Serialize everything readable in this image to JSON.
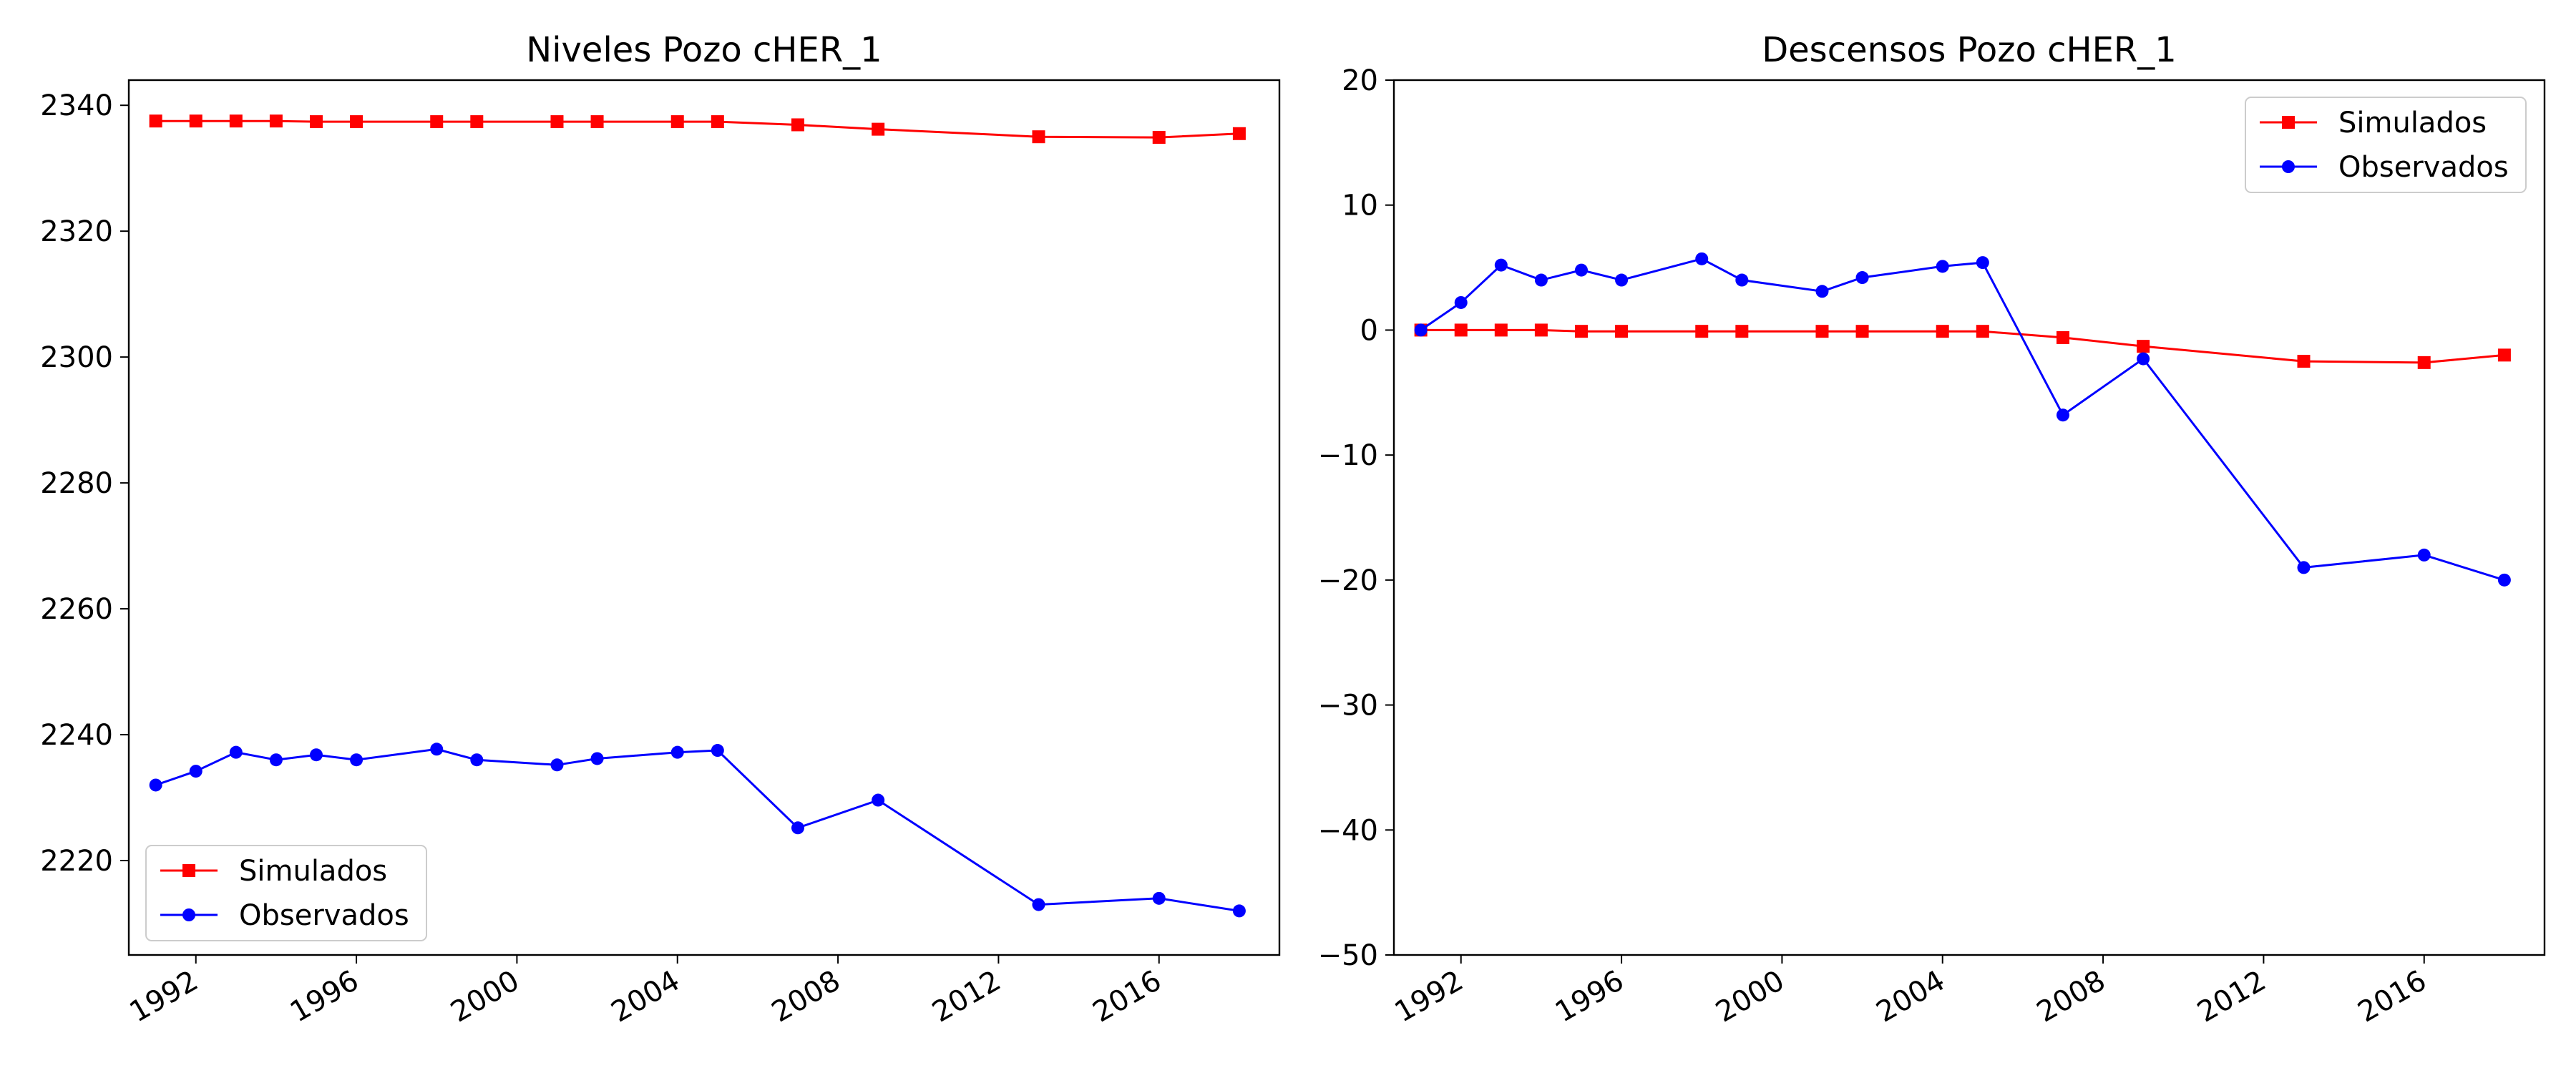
{
  "chart_data": [
    {
      "type": "line",
      "title": "Niveles Pozo cHER_1",
      "xlabel": "",
      "ylabel": "",
      "xlim": [
        "1990-05-01",
        "2019-01-01"
      ],
      "ylim": [
        2205,
        2344
      ],
      "x_ticks": [
        "1992",
        "1996",
        "2000",
        "2004",
        "2008",
        "2012",
        "2016"
      ],
      "y_ticks": [
        2220,
        2240,
        2260,
        2280,
        2300,
        2320,
        2340
      ],
      "legend_position": "lower-left",
      "grid": false,
      "series": [
        {
          "name": "Simulados",
          "color": "#ff0000",
          "marker": "square",
          "x": [
            "1991-01-01",
            "1992-01-01",
            "1993-01-01",
            "1994-01-01",
            "1995-01-01",
            "1996-01-01",
            "1998-01-01",
            "1999-01-01",
            "2001-01-01",
            "2002-01-01",
            "2004-01-01",
            "2005-01-01",
            "2007-01-01",
            "2009-01-01",
            "2013-01-01",
            "2016-01-01",
            "2018-01-01"
          ],
          "values": [
            2337.5,
            2337.5,
            2337.5,
            2337.5,
            2337.4,
            2337.4,
            2337.4,
            2337.4,
            2337.4,
            2337.4,
            2337.4,
            2337.4,
            2336.9,
            2336.2,
            2335.0,
            2334.9,
            2335.5
          ]
        },
        {
          "name": "Observados",
          "color": "#0000ff",
          "marker": "circle",
          "x": [
            "1991-01-01",
            "1992-01-01",
            "1993-01-01",
            "1994-01-01",
            "1995-01-01",
            "1996-01-01",
            "1998-01-01",
            "1999-01-01",
            "2001-01-01",
            "2002-01-01",
            "2004-01-01",
            "2005-01-01",
            "2007-01-01",
            "2009-01-01",
            "2013-01-01",
            "2016-01-01",
            "2018-01-01"
          ],
          "values": [
            2232.0,
            2234.2,
            2237.2,
            2236.0,
            2236.8,
            2236.0,
            2237.7,
            2236.0,
            2235.2,
            2236.2,
            2237.2,
            2237.5,
            2225.2,
            2229.6,
            2213.0,
            2214.0,
            2212.0
          ]
        }
      ]
    },
    {
      "type": "line",
      "title": "Descensos Pozo cHER_1",
      "xlabel": "",
      "ylabel": "",
      "xlim": [
        "1990-05-01",
        "2019-01-01"
      ],
      "ylim": [
        -50,
        20
      ],
      "x_ticks": [
        "1992",
        "1996",
        "2000",
        "2004",
        "2008",
        "2012",
        "2016"
      ],
      "y_ticks": [
        -50,
        -40,
        -30,
        -20,
        -10,
        0,
        10,
        20
      ],
      "legend_position": "upper-right",
      "grid": false,
      "series": [
        {
          "name": "Simulados",
          "color": "#ff0000",
          "marker": "square",
          "x": [
            "1991-01-01",
            "1992-01-01",
            "1993-01-01",
            "1994-01-01",
            "1995-01-01",
            "1996-01-01",
            "1998-01-01",
            "1999-01-01",
            "2001-01-01",
            "2002-01-01",
            "2004-01-01",
            "2005-01-01",
            "2007-01-01",
            "2009-01-01",
            "2013-01-01",
            "2016-01-01",
            "2018-01-01"
          ],
          "values": [
            0.0,
            0.0,
            0.0,
            0.0,
            -0.1,
            -0.1,
            -0.1,
            -0.1,
            -0.1,
            -0.1,
            -0.1,
            -0.1,
            -0.6,
            -1.3,
            -2.5,
            -2.6,
            -2.0
          ]
        },
        {
          "name": "Observados",
          "color": "#0000ff",
          "marker": "circle",
          "x": [
            "1991-01-01",
            "1992-01-01",
            "1993-01-01",
            "1994-01-01",
            "1995-01-01",
            "1996-01-01",
            "1998-01-01",
            "1999-01-01",
            "2001-01-01",
            "2002-01-01",
            "2004-01-01",
            "2005-01-01",
            "2007-01-01",
            "2009-01-01",
            "2013-01-01",
            "2016-01-01",
            "2018-01-01"
          ],
          "values": [
            0.0,
            2.2,
            5.2,
            4.0,
            4.8,
            4.0,
            5.7,
            4.0,
            3.1,
            4.2,
            5.1,
            5.4,
            -6.8,
            -2.3,
            -19.0,
            -18.0,
            -20.0
          ]
        }
      ]
    }
  ]
}
